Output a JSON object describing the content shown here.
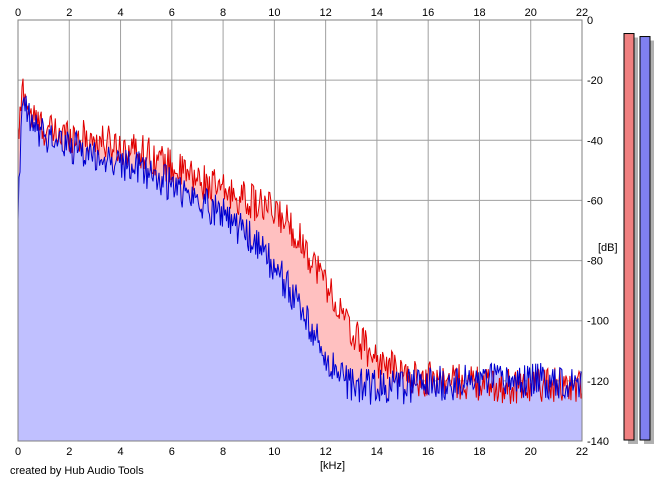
{
  "chart_data": {
    "type": "area",
    "footer": "created by Hub Audio Tools",
    "xlabel": "[kHz]",
    "ylabel": "[dB]",
    "xlim": [
      0,
      22
    ],
    "ylim": [
      -140,
      0
    ],
    "x_ticks": [
      "0",
      "2",
      "4",
      "6",
      "8",
      "10",
      "12",
      "14",
      "16",
      "18",
      "20",
      "22"
    ],
    "y_ticks": [
      "0",
      "-20",
      "-40",
      "-60",
      "-80",
      "-100",
      "-120",
      "-140"
    ],
    "grid": true,
    "series": [
      {
        "color": "#e00000",
        "fill": "#ffc0c0",
        "x": [
          0,
          0.2,
          0.5,
          1,
          1.5,
          2,
          3,
          4,
          5,
          6,
          7,
          8,
          9,
          10,
          10.5,
          11,
          11.5,
          12,
          12.5,
          13,
          13.5,
          14,
          15,
          15.8,
          16,
          17,
          18,
          19,
          20,
          21,
          22
        ],
        "y": [
          -40,
          -22,
          -32,
          -36,
          -38,
          -38,
          -40,
          -42,
          -44,
          -49,
          -53,
          -57,
          -60,
          -64,
          -67,
          -73,
          -80,
          -87,
          -96,
          -104,
          -108,
          -113,
          -118,
          -120,
          -119,
          -120,
          -121,
          -122,
          -121,
          -121,
          -122
        ]
      },
      {
        "color": "#0000d0",
        "fill": "#c0c0ff",
        "x": [
          0,
          0.2,
          0.5,
          1,
          1.5,
          2,
          3,
          4,
          5,
          6,
          7,
          8,
          9,
          10,
          10.5,
          11,
          11.5,
          12,
          12.5,
          13,
          13.5,
          14,
          15,
          16,
          17,
          18,
          19,
          20,
          21,
          22
        ],
        "y": [
          -62,
          -27,
          -35,
          -38,
          -40,
          -42,
          -45,
          -48,
          -50,
          -55,
          -60,
          -64,
          -72,
          -82,
          -88,
          -96,
          -104,
          -112,
          -118,
          -121,
          -122,
          -122,
          -122,
          -121,
          -121,
          -120,
          -120,
          -120,
          -120,
          -120
        ]
      }
    ],
    "level_meters": [
      {
        "color": "#f08080",
        "value_db": -4.5
      },
      {
        "color": "#8080f0",
        "value_db": -5.5
      }
    ]
  }
}
